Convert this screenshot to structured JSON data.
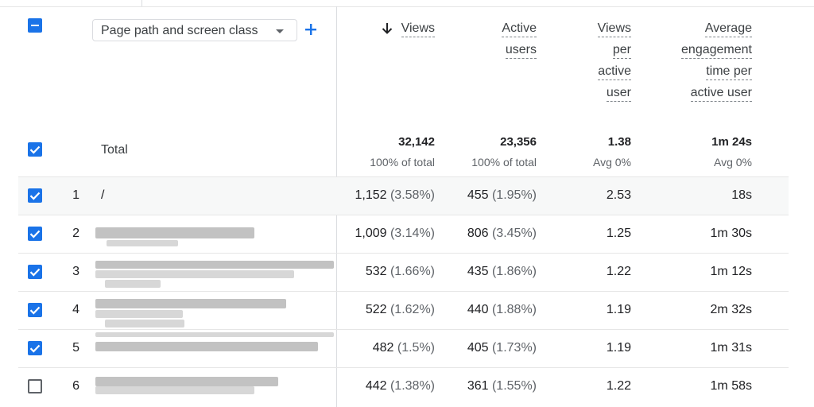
{
  "dimension": {
    "label": "Page path and screen class"
  },
  "columns": [
    {
      "key": "views",
      "label": [
        "Views"
      ],
      "sorted": true
    },
    {
      "key": "active_users",
      "label": [
        "Active",
        "users"
      ]
    },
    {
      "key": "views_per_user",
      "label": [
        "Views",
        "per",
        "active",
        "user"
      ]
    },
    {
      "key": "avg_engagement",
      "label": [
        "Average",
        "engagement",
        "time per",
        "active user"
      ]
    }
  ],
  "totals": {
    "label": "Total",
    "views": "32,142",
    "views_sub": "100% of total",
    "active_users": "23,356",
    "active_users_sub": "100% of total",
    "views_per_user": "1.38",
    "views_per_user_sub": "Avg 0%",
    "avg_engagement": "1m 24s",
    "avg_engagement_sub": "Avg 0%"
  },
  "rows": [
    {
      "index": "1",
      "path": "/",
      "checked": true,
      "views": "1,152",
      "views_pct": "(3.58%)",
      "active_users": "455",
      "active_users_pct": "(1.95%)",
      "views_per_user": "2.53",
      "avg_engagement": "18s"
    },
    {
      "index": "2",
      "path": "",
      "checked": true,
      "views": "1,009",
      "views_pct": "(3.14%)",
      "active_users": "806",
      "active_users_pct": "(3.45%)",
      "views_per_user": "1.25",
      "avg_engagement": "1m 30s"
    },
    {
      "index": "3",
      "path": "",
      "checked": true,
      "views": "532",
      "views_pct": "(1.66%)",
      "active_users": "435",
      "active_users_pct": "(1.86%)",
      "views_per_user": "1.22",
      "avg_engagement": "1m 12s"
    },
    {
      "index": "4",
      "path": "",
      "checked": true,
      "views": "522",
      "views_pct": "(1.62%)",
      "active_users": "440",
      "active_users_pct": "(1.88%)",
      "views_per_user": "1.19",
      "avg_engagement": "2m 32s"
    },
    {
      "index": "5",
      "path": "",
      "checked": true,
      "views": "482",
      "views_pct": "(1.5%)",
      "active_users": "405",
      "active_users_pct": "(1.73%)",
      "views_per_user": "1.19",
      "avg_engagement": "1m 31s"
    },
    {
      "index": "6",
      "path": "",
      "checked": false,
      "views": "442",
      "views_pct": "(1.38%)",
      "active_users": "361",
      "active_users_pct": "(1.55%)",
      "views_per_user": "1.22",
      "avg_engagement": "1m 58s"
    }
  ],
  "colors": {
    "accent": "#1a73e8",
    "text": "#202124",
    "muted": "#5f6368",
    "row_shade": "#f7f8f8"
  },
  "icons": {
    "header_checkbox": "indeterminate-checkbox-icon",
    "add": "plus-icon",
    "sort": "arrow-down-icon",
    "caret": "caret-down-icon"
  }
}
